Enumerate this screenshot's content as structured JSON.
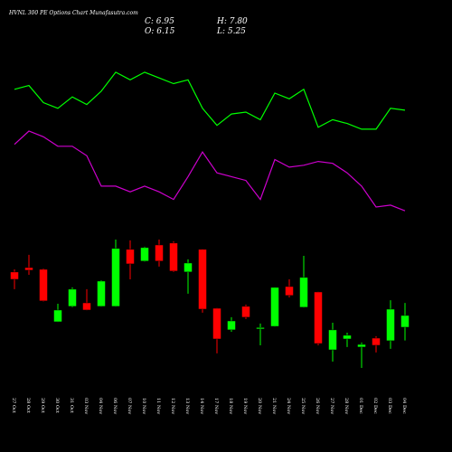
{
  "chart_data": {
    "type": "candlestick",
    "title": "HVNL 300 PE Options Chart Munafasutra.com",
    "last_labels": {
      "close": "C: 6.95",
      "high": "H: 7.80",
      "open": "O: 6.15",
      "low": "L: 5.25"
    },
    "categories": [
      "27 Oct",
      "28 Oct",
      "29 Oct",
      "30 Oct",
      "31 Oct",
      "03 Nov",
      "04 Nov",
      "06 Nov",
      "07 Nov",
      "10 Nov",
      "11 Nov",
      "12 Nov",
      "13 Nov",
      "14 Nov",
      "17 Nov",
      "18 Nov",
      "19 Nov",
      "20 Nov",
      "21 Nov",
      "24 Nov",
      "25 Nov",
      "26 Nov",
      "27 Nov",
      "28 Nov",
      "01 Dec",
      "02 Dec",
      "03 Dec",
      "04 Dec"
    ],
    "open": [
      9.91,
      10.21,
      10.09,
      6.52,
      7.57,
      7.81,
      7.57,
      7.57,
      11.45,
      10.65,
      11.75,
      11.88,
      9.91,
      11.45,
      7.44,
      5.97,
      7.57,
      6.03,
      6.21,
      8.92,
      7.51,
      8.55,
      4.61,
      5.35,
      4.8,
      5.41,
      5.23,
      6.15
    ],
    "high": [
      10.09,
      11.08,
      10.15,
      7.75,
      8.86,
      8.74,
      9.35,
      12.12,
      12.06,
      11.63,
      12.12,
      12.0,
      10.77,
      11.48,
      7.47,
      6.83,
      7.69,
      6.4,
      8.88,
      9.41,
      11.01,
      8.57,
      6.46,
      5.78,
      5.11,
      5.54,
      7.99,
      7.8
    ],
    "low": [
      8.74,
      9.72,
      7.9,
      6.5,
      7.51,
      7.3,
      7.55,
      7.55,
      9.41,
      10.62,
      10.28,
      9.91,
      8.43,
      7.14,
      4.37,
      5.84,
      6.71,
      4.92,
      6.19,
      8.18,
      7.49,
      4.92,
      3.81,
      4.8,
      3.38,
      4.43,
      4.68,
      5.25
    ],
    "close": [
      9.41,
      10.03,
      7.94,
      7.32,
      8.74,
      7.32,
      9.29,
      11.51,
      10.46,
      11.57,
      10.65,
      9.97,
      10.52,
      7.38,
      5.35,
      6.58,
      6.83,
      6.13,
      8.86,
      8.31,
      9.54,
      5.04,
      5.97,
      5.6,
      4.98,
      4.92,
      7.38,
      6.95
    ],
    "up_color": "#00ff00",
    "down_color": "#ff0000",
    "ylim": [
      2.58,
      13.04
    ],
    "series": [
      {
        "color": "#00ff00",
        "axis": "y2",
        "values": [
          72,
          74,
          65,
          62,
          68,
          64,
          71,
          81,
          77,
          81,
          78,
          75,
          77,
          62,
          53,
          59,
          60,
          56,
          70,
          67,
          72,
          52,
          56,
          54,
          51,
          51,
          62,
          61
        ]
      },
      {
        "color": "#cc00cc",
        "axis": "y2",
        "values": [
          43,
          50,
          47,
          42,
          42,
          37,
          21,
          21,
          18,
          21,
          18,
          14,
          26,
          39,
          28,
          26,
          24,
          14,
          35,
          31,
          32,
          34,
          33,
          28,
          21,
          10,
          11,
          8
        ]
      }
    ],
    "y2lim": [
      0,
      100
    ]
  }
}
